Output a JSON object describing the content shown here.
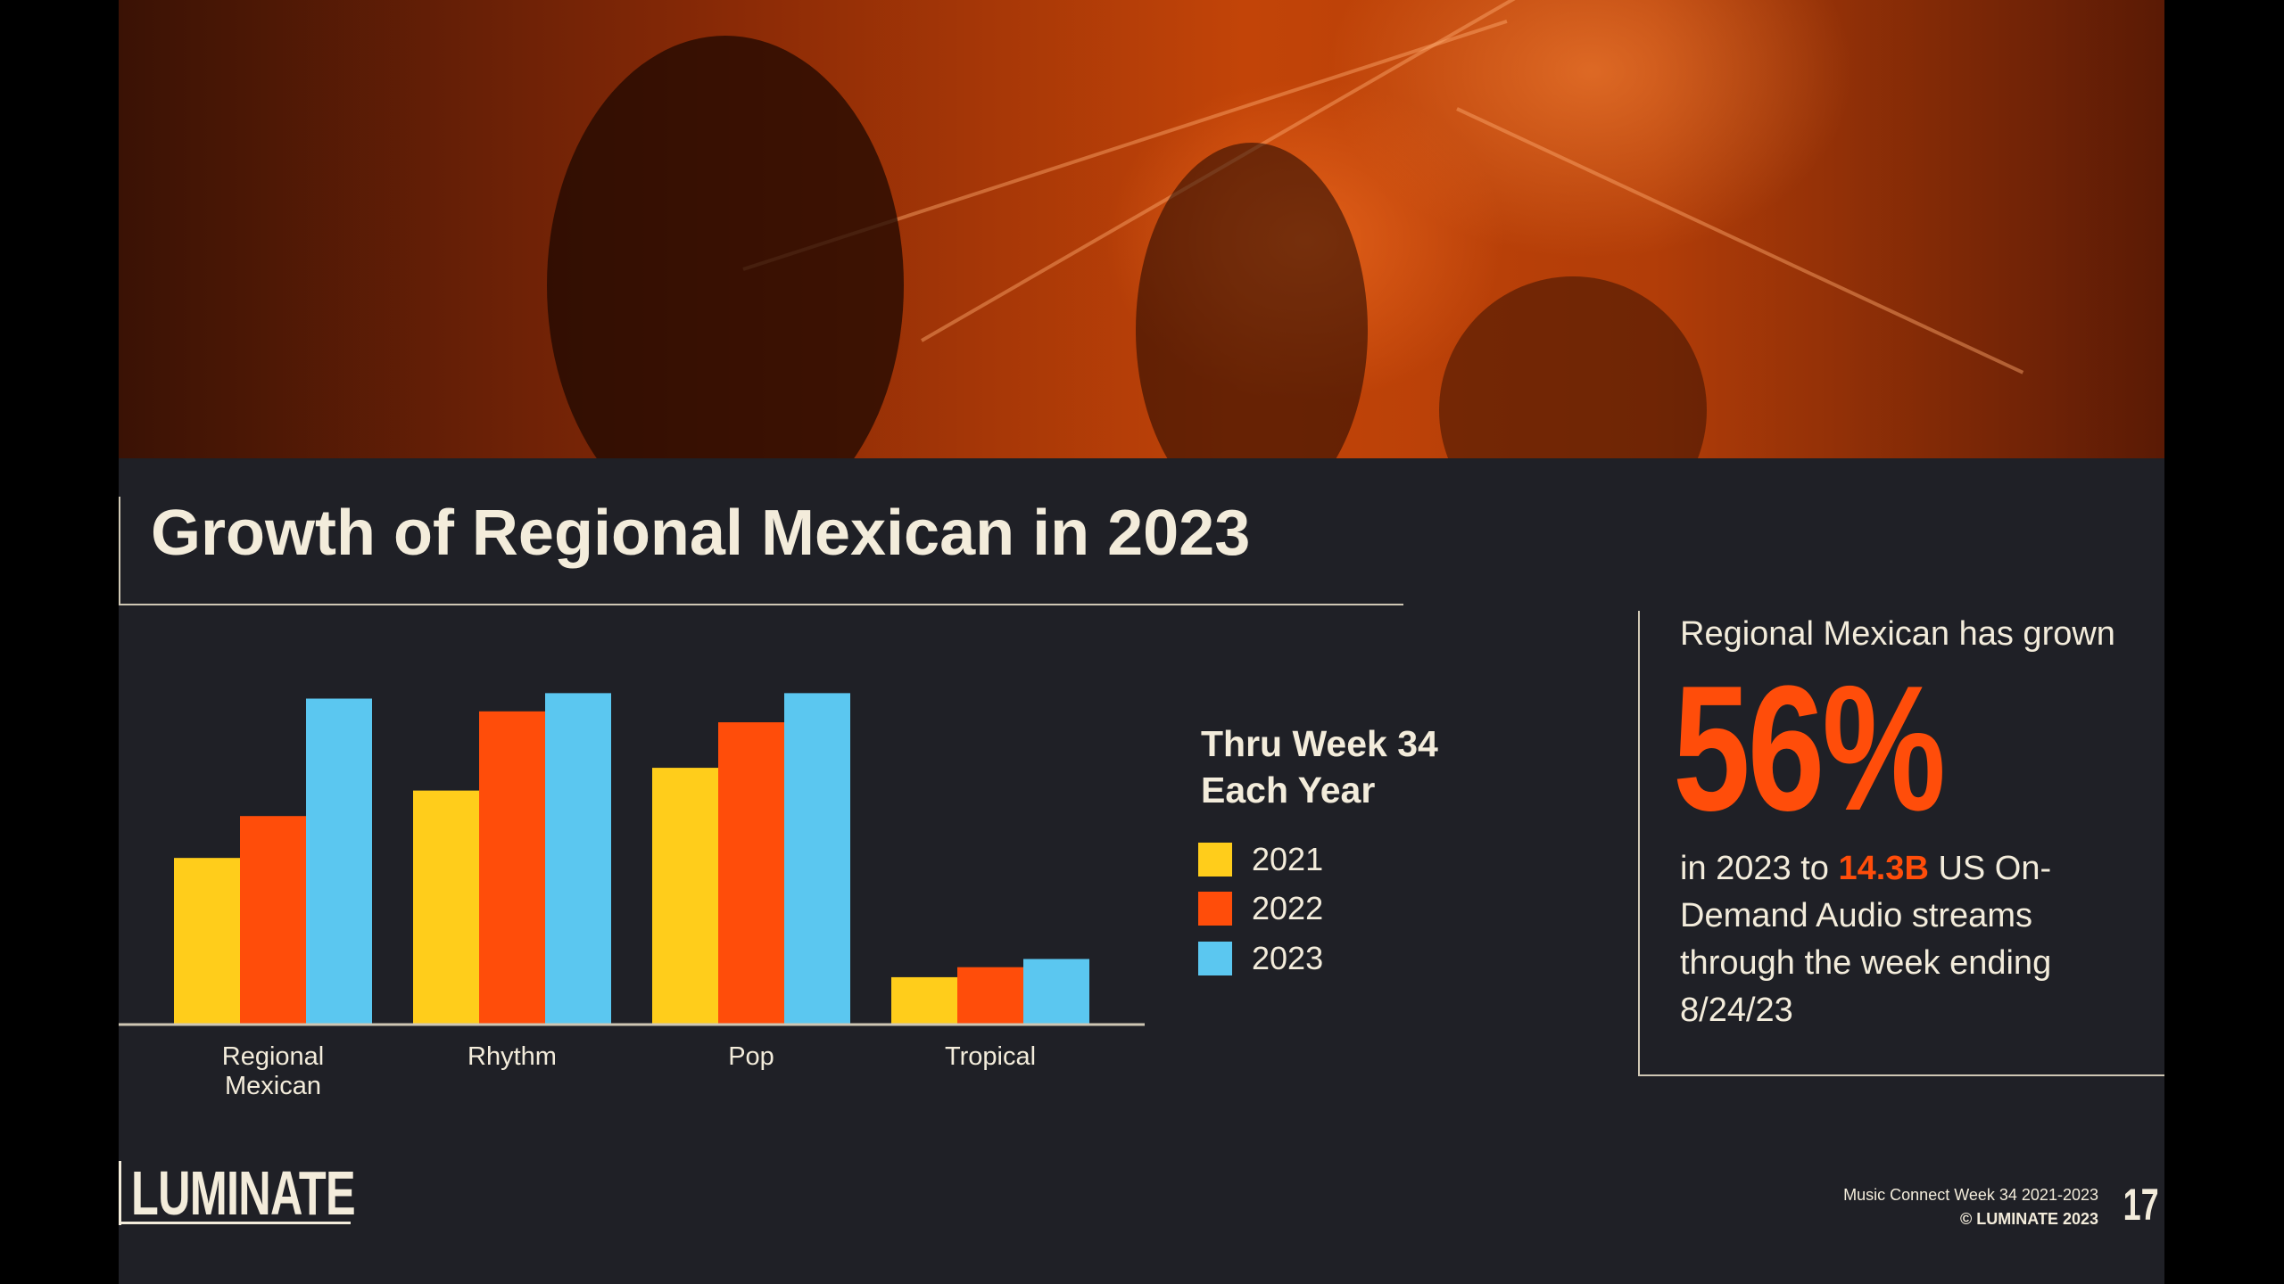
{
  "title": "Growth of Regional Mexican in 2023",
  "chart_data": {
    "type": "bar",
    "categories": [
      "Regional\nMexican",
      "Rhythm",
      "Pop",
      "Tropical"
    ],
    "series": [
      {
        "name": "2021",
        "color": "#ffcd1b",
        "values": [
          182,
          256,
          281,
          51
        ]
      },
      {
        "name": "2022",
        "color": "#ff4d0a",
        "values": [
          228,
          343,
          331,
          62
        ]
      },
      {
        "name": "2023",
        "color": "#5bc7f0",
        "values": [
          357,
          363,
          363,
          71
        ]
      }
    ],
    "ylim": [
      0,
      380
    ],
    "grid": false,
    "legend_title": "Thru Week 34\nEach Year",
    "legend_placement": "right"
  },
  "callout": {
    "top": "Regional Mexican has grown",
    "big": "56%",
    "body_pre": "in 2023 to ",
    "body_highlight": "14.3B",
    "body_post": " US On-Demand Audio streams through the week ending 8/24/23"
  },
  "logo": "LUMINATE",
  "footer": {
    "line1": "Music Connect Week 34 2021-2023",
    "line2": "© LUMINATE 2023"
  },
  "page_number": "17"
}
